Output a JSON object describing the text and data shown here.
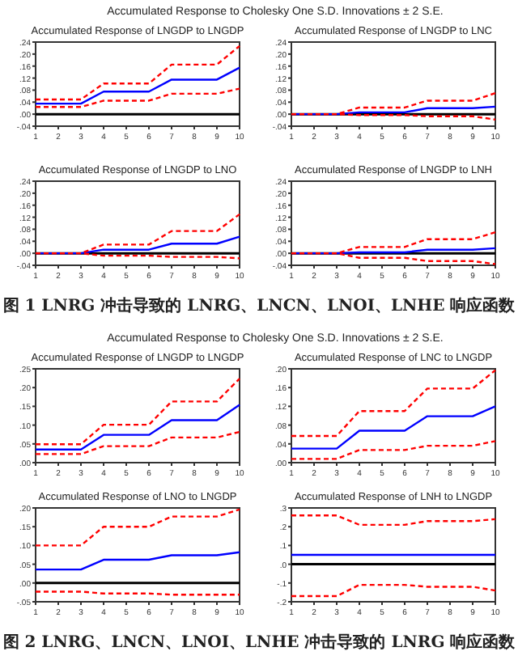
{
  "chart_data": [
    {
      "type": "line",
      "title": "Accumulated Response of LNGDP to LNGDP",
      "annotations": [
        "Accumulated Response to Cholesky One S.D. Innovations ± 2 S.E."
      ],
      "x": [
        1,
        2,
        3,
        4,
        5,
        6,
        7,
        8,
        9,
        10
      ],
      "xlim": [
        1,
        10
      ],
      "xticks": [
        1,
        2,
        3,
        4,
        5,
        6,
        7,
        8,
        9,
        10
      ],
      "ylim": [
        -0.04,
        0.24
      ],
      "yticks": [
        {
          "value": -0.04,
          "label": "-.04"
        },
        {
          "value": 0,
          "label": ".00"
        },
        {
          "value": 0.04,
          "label": ".04"
        },
        {
          "value": 0.08,
          "label": ".08"
        },
        {
          "value": 0.12,
          "label": ".12"
        },
        {
          "value": 0.16,
          "label": ".16"
        },
        {
          "value": 0.2,
          "label": ".20"
        },
        {
          "value": 0.24,
          "label": ".24"
        }
      ],
      "ref_lines": [
        {
          "axis": "y",
          "value": 0,
          "color": "#000000"
        }
      ],
      "series": [
        {
          "color": "#0000ff",
          "line_style": "solid",
          "values": [
            0.035,
            0.035,
            0.035,
            0.075,
            0.075,
            0.075,
            0.115,
            0.115,
            0.115,
            0.155
          ]
        },
        {
          "color": "#ff0000",
          "line_style": "dashed",
          "values": [
            0.049,
            0.049,
            0.049,
            0.102,
            0.102,
            0.102,
            0.165,
            0.165,
            0.165,
            0.227
          ]
        },
        {
          "color": "#ff0000",
          "line_style": "dashed",
          "values": [
            0.024,
            0.024,
            0.024,
            0.045,
            0.045,
            0.045,
            0.068,
            0.068,
            0.068,
            0.085
          ]
        }
      ]
    },
    {
      "type": "line",
      "title": "Accumulated Response of LNGDP to LNC",
      "x": [
        1,
        2,
        3,
        4,
        5,
        6,
        7,
        8,
        9,
        10
      ],
      "xlim": [
        1,
        10
      ],
      "xticks": [
        1,
        2,
        3,
        4,
        5,
        6,
        7,
        8,
        9,
        10
      ],
      "ylim": [
        -0.04,
        0.24
      ],
      "yticks": [
        {
          "value": -0.04,
          "label": "-.04"
        },
        {
          "value": 0,
          "label": ".00"
        },
        {
          "value": 0.04,
          "label": ".04"
        },
        {
          "value": 0.08,
          "label": ".08"
        },
        {
          "value": 0.12,
          "label": ".12"
        },
        {
          "value": 0.16,
          "label": ".16"
        },
        {
          "value": 0.2,
          "label": ".20"
        },
        {
          "value": 0.24,
          "label": ".24"
        }
      ],
      "ref_lines": [
        {
          "axis": "y",
          "value": 0,
          "color": "#000000"
        }
      ],
      "series": [
        {
          "color": "#0000ff",
          "line_style": "solid",
          "values": [
            0,
            0,
            0,
            0.006,
            0.006,
            0.006,
            0.02,
            0.02,
            0.02,
            0.025
          ]
        },
        {
          "color": "#ff0000",
          "line_style": "dashed",
          "values": [
            0,
            0,
            0,
            0.022,
            0.022,
            0.022,
            0.045,
            0.045,
            0.045,
            0.07
          ]
        },
        {
          "color": "#ff0000",
          "line_style": "dashed",
          "values": [
            0,
            0,
            0,
            -0.003,
            -0.003,
            -0.003,
            -0.007,
            -0.007,
            -0.007,
            -0.018
          ]
        }
      ]
    },
    {
      "type": "line",
      "title": "Accumulated Response of LNGDP to LNO",
      "x": [
        1,
        2,
        3,
        4,
        5,
        6,
        7,
        8,
        9,
        10
      ],
      "xlim": [
        1,
        10
      ],
      "xticks": [
        1,
        2,
        3,
        4,
        5,
        6,
        7,
        8,
        9,
        10
      ],
      "ylim": [
        -0.04,
        0.24
      ],
      "yticks": [
        {
          "value": -0.04,
          "label": "-.04"
        },
        {
          "value": 0,
          "label": ".00"
        },
        {
          "value": 0.04,
          "label": ".04"
        },
        {
          "value": 0.08,
          "label": ".08"
        },
        {
          "value": 0.12,
          "label": ".12"
        },
        {
          "value": 0.16,
          "label": ".16"
        },
        {
          "value": 0.2,
          "label": ".20"
        },
        {
          "value": 0.24,
          "label": ".24"
        }
      ],
      "ref_lines": [
        {
          "axis": "y",
          "value": 0,
          "color": "#000000"
        }
      ],
      "series": [
        {
          "color": "#0000ff",
          "line_style": "solid",
          "values": [
            0,
            0,
            0,
            0.012,
            0.012,
            0.012,
            0.032,
            0.032,
            0.032,
            0.055
          ]
        },
        {
          "color": "#ff0000",
          "line_style": "dashed",
          "values": [
            0,
            0,
            0,
            0.029,
            0.029,
            0.029,
            0.074,
            0.074,
            0.074,
            0.13
          ]
        },
        {
          "color": "#ff0000",
          "line_style": "dashed",
          "values": [
            0,
            0,
            0,
            -0.008,
            -0.008,
            -0.008,
            -0.012,
            -0.012,
            -0.012,
            -0.017
          ]
        }
      ]
    },
    {
      "type": "line",
      "title": "Accumulated Response of LNGDP to LNH",
      "annotations": [
        "图 1 LNRG 冲击导致的 LNRG、LNCN、LNOI、LNHE 响应函数"
      ],
      "x": [
        1,
        2,
        3,
        4,
        5,
        6,
        7,
        8,
        9,
        10
      ],
      "xlim": [
        1,
        10
      ],
      "xticks": [
        1,
        2,
        3,
        4,
        5,
        6,
        7,
        8,
        9,
        10
      ],
      "ylim": [
        -0.04,
        0.24
      ],
      "yticks": [
        {
          "value": -0.04,
          "label": "-.04"
        },
        {
          "value": 0,
          "label": ".00"
        },
        {
          "value": 0.04,
          "label": ".04"
        },
        {
          "value": 0.08,
          "label": ".08"
        },
        {
          "value": 0.12,
          "label": ".12"
        },
        {
          "value": 0.16,
          "label": ".16"
        },
        {
          "value": 0.2,
          "label": ".20"
        },
        {
          "value": 0.24,
          "label": ".24"
        }
      ],
      "ref_lines": [
        {
          "axis": "y",
          "value": 0,
          "color": "#000000"
        }
      ],
      "series": [
        {
          "color": "#0000ff",
          "line_style": "solid",
          "values": [
            0,
            0,
            0,
            0.003,
            0.003,
            0.003,
            0.012,
            0.012,
            0.012,
            0.017
          ]
        },
        {
          "color": "#ff0000",
          "line_style": "dashed",
          "values": [
            0,
            0,
            0,
            0.021,
            0.021,
            0.021,
            0.047,
            0.047,
            0.047,
            0.07
          ]
        },
        {
          "color": "#ff0000",
          "line_style": "dashed",
          "values": [
            0,
            0,
            0,
            -0.015,
            -0.015,
            -0.015,
            -0.026,
            -0.026,
            -0.026,
            -0.036
          ]
        }
      ]
    },
    {
      "type": "line",
      "title": "Accumulated Response of LNGDP to LNGDP",
      "annotations": [
        "Accumulated Response to Cholesky One S.D. Innovations ± 2 S.E."
      ],
      "x": [
        1,
        2,
        3,
        4,
        5,
        6,
        7,
        8,
        9,
        10
      ],
      "xlim": [
        1,
        10
      ],
      "xticks": [
        1,
        2,
        3,
        4,
        5,
        6,
        7,
        8,
        9,
        10
      ],
      "ylim": [
        0,
        0.25
      ],
      "yticks": [
        {
          "value": 0,
          "label": ".00"
        },
        {
          "value": 0.05,
          "label": ".05"
        },
        {
          "value": 0.1,
          "label": ".10"
        },
        {
          "value": 0.15,
          "label": ".15"
        },
        {
          "value": 0.2,
          "label": ".20"
        },
        {
          "value": 0.25,
          "label": ".25"
        }
      ],
      "series": [
        {
          "color": "#0000ff",
          "line_style": "solid",
          "values": [
            0.035,
            0.035,
            0.035,
            0.074,
            0.074,
            0.074,
            0.113,
            0.113,
            0.113,
            0.154
          ]
        },
        {
          "color": "#ff0000",
          "line_style": "dashed",
          "values": [
            0.049,
            0.049,
            0.049,
            0.101,
            0.101,
            0.101,
            0.163,
            0.163,
            0.163,
            0.224
          ]
        },
        {
          "color": "#ff0000",
          "line_style": "dashed",
          "values": [
            0.023,
            0.023,
            0.023,
            0.044,
            0.044,
            0.044,
            0.067,
            0.067,
            0.067,
            0.082
          ]
        }
      ]
    },
    {
      "type": "line",
      "title": "Accumulated Response of LNC to LNGDP",
      "x": [
        1,
        2,
        3,
        4,
        5,
        6,
        7,
        8,
        9,
        10
      ],
      "xlim": [
        1,
        10
      ],
      "xticks": [
        1,
        2,
        3,
        4,
        5,
        6,
        7,
        8,
        9,
        10
      ],
      "ylim": [
        0,
        0.2
      ],
      "yticks": [
        {
          "value": 0,
          "label": ".00"
        },
        {
          "value": 0.04,
          "label": ".04"
        },
        {
          "value": 0.08,
          "label": ".08"
        },
        {
          "value": 0.12,
          "label": ".12"
        },
        {
          "value": 0.16,
          "label": ".16"
        },
        {
          "value": 0.2,
          "label": ".20"
        }
      ],
      "series": [
        {
          "color": "#0000ff",
          "line_style": "solid",
          "values": [
            0.03,
            0.03,
            0.03,
            0.068,
            0.068,
            0.068,
            0.099,
            0.099,
            0.099,
            0.12
          ]
        },
        {
          "color": "#ff0000",
          "line_style": "dashed",
          "values": [
            0.057,
            0.057,
            0.057,
            0.11,
            0.11,
            0.11,
            0.158,
            0.158,
            0.158,
            0.197
          ]
        },
        {
          "color": "#ff0000",
          "line_style": "dashed",
          "values": [
            0.008,
            0.008,
            0.008,
            0.027,
            0.027,
            0.027,
            0.036,
            0.036,
            0.036,
            0.046
          ]
        }
      ]
    },
    {
      "type": "line",
      "title": "Accumulated Response of LNO to LNGDP",
      "x": [
        1,
        2,
        3,
        4,
        5,
        6,
        7,
        8,
        9,
        10
      ],
      "xlim": [
        1,
        10
      ],
      "xticks": [
        1,
        2,
        3,
        4,
        5,
        6,
        7,
        8,
        9,
        10
      ],
      "ylim": [
        -0.05,
        0.2
      ],
      "yticks": [
        {
          "value": -0.05,
          "label": "-.05"
        },
        {
          "value": 0,
          "label": ".00"
        },
        {
          "value": 0.05,
          "label": ".05"
        },
        {
          "value": 0.1,
          "label": ".10"
        },
        {
          "value": 0.15,
          "label": ".15"
        },
        {
          "value": 0.2,
          "label": ".20"
        }
      ],
      "ref_lines": [
        {
          "axis": "y",
          "value": 0,
          "color": "#000000"
        }
      ],
      "series": [
        {
          "color": "#0000ff",
          "line_style": "solid",
          "values": [
            0.036,
            0.036,
            0.036,
            0.062,
            0.062,
            0.062,
            0.074,
            0.074,
            0.074,
            0.082
          ]
        },
        {
          "color": "#ff0000",
          "line_style": "dashed",
          "values": [
            0.1,
            0.1,
            0.1,
            0.15,
            0.15,
            0.15,
            0.177,
            0.177,
            0.177,
            0.196
          ]
        },
        {
          "color": "#ff0000",
          "line_style": "dashed",
          "values": [
            -0.023,
            -0.023,
            -0.023,
            -0.028,
            -0.028,
            -0.028,
            -0.031,
            -0.031,
            -0.031,
            -0.031
          ]
        }
      ]
    },
    {
      "type": "line",
      "title": "Accumulated Response of LNH to LNGDP",
      "annotations": [
        "图 2 LNRG、LNCN、LNOI、LNHE 冲击导致的 LNRG 响应函数"
      ],
      "x": [
        1,
        2,
        3,
        4,
        5,
        6,
        7,
        8,
        9,
        10
      ],
      "xlim": [
        1,
        10
      ],
      "xticks": [
        1,
        2,
        3,
        4,
        5,
        6,
        7,
        8,
        9,
        10
      ],
      "ylim": [
        -0.2,
        0.3
      ],
      "yticks": [
        {
          "value": -0.2,
          "label": "-.2"
        },
        {
          "value": -0.1,
          "label": "-.1"
        },
        {
          "value": 0,
          "label": ".0"
        },
        {
          "value": 0.1,
          "label": ".1"
        },
        {
          "value": 0.2,
          "label": ".2"
        },
        {
          "value": 0.3,
          "label": ".3"
        }
      ],
      "ref_lines": [
        {
          "axis": "y",
          "value": 0,
          "color": "#000000"
        }
      ],
      "series": [
        {
          "color": "#0000ff",
          "line_style": "solid",
          "values": [
            0.05,
            0.05,
            0.05,
            0.05,
            0.05,
            0.05,
            0.05,
            0.05,
            0.05,
            0.05
          ]
        },
        {
          "color": "#ff0000",
          "line_style": "dashed",
          "values": [
            0.26,
            0.26,
            0.26,
            0.21,
            0.21,
            0.21,
            0.23,
            0.23,
            0.23,
            0.24
          ]
        },
        {
          "color": "#ff0000",
          "line_style": "dashed",
          "values": [
            -0.17,
            -0.17,
            -0.17,
            -0.11,
            -0.11,
            -0.11,
            -0.12,
            -0.12,
            -0.12,
            -0.14
          ]
        }
      ]
    }
  ]
}
